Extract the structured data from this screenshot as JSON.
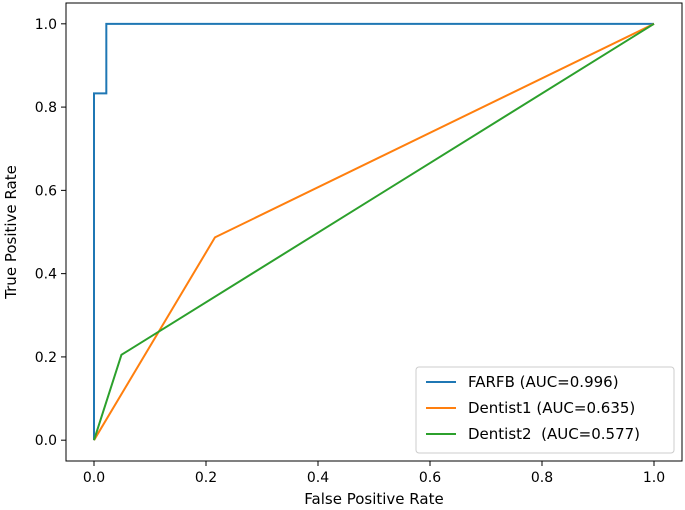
{
  "chart_data": {
    "type": "line",
    "title": "",
    "xlabel": "False Positive Rate",
    "ylabel": "True Positive Rate",
    "xlim": [
      -0.05,
      1.05
    ],
    "ylim": [
      -0.05,
      1.05
    ],
    "xticks": [
      0.0,
      0.2,
      0.4,
      0.6,
      0.8,
      1.0
    ],
    "yticks": [
      0.0,
      0.2,
      0.4,
      0.6,
      0.8,
      1.0
    ],
    "xtick_labels": [
      "0.0",
      "0.2",
      "0.4",
      "0.6",
      "0.8",
      "1.0"
    ],
    "ytick_labels": [
      "0.0",
      "0.2",
      "0.4",
      "0.6",
      "0.8",
      "1.0"
    ],
    "grid": false,
    "legend_position": "bottom-right",
    "series": [
      {
        "name": "FARFB (AUC=0.996)",
        "color": "#1f77b4",
        "x": [
          0.0,
          0.0,
          0.0,
          0.022,
          0.022,
          1.0
        ],
        "y": [
          0.0,
          0.833,
          0.833,
          0.833,
          1.0,
          1.0
        ]
      },
      {
        "name": "Dentist1 (AUC=0.635)",
        "color": "#ff7f0e",
        "x": [
          0.0,
          0.216,
          1.0
        ],
        "y": [
          0.0,
          0.487,
          1.0
        ]
      },
      {
        "name": "Dentist2  (AUC=0.577)",
        "color": "#2ca02c",
        "x": [
          0.0,
          0.049,
          1.0
        ],
        "y": [
          0.0,
          0.205,
          1.0
        ]
      }
    ]
  }
}
